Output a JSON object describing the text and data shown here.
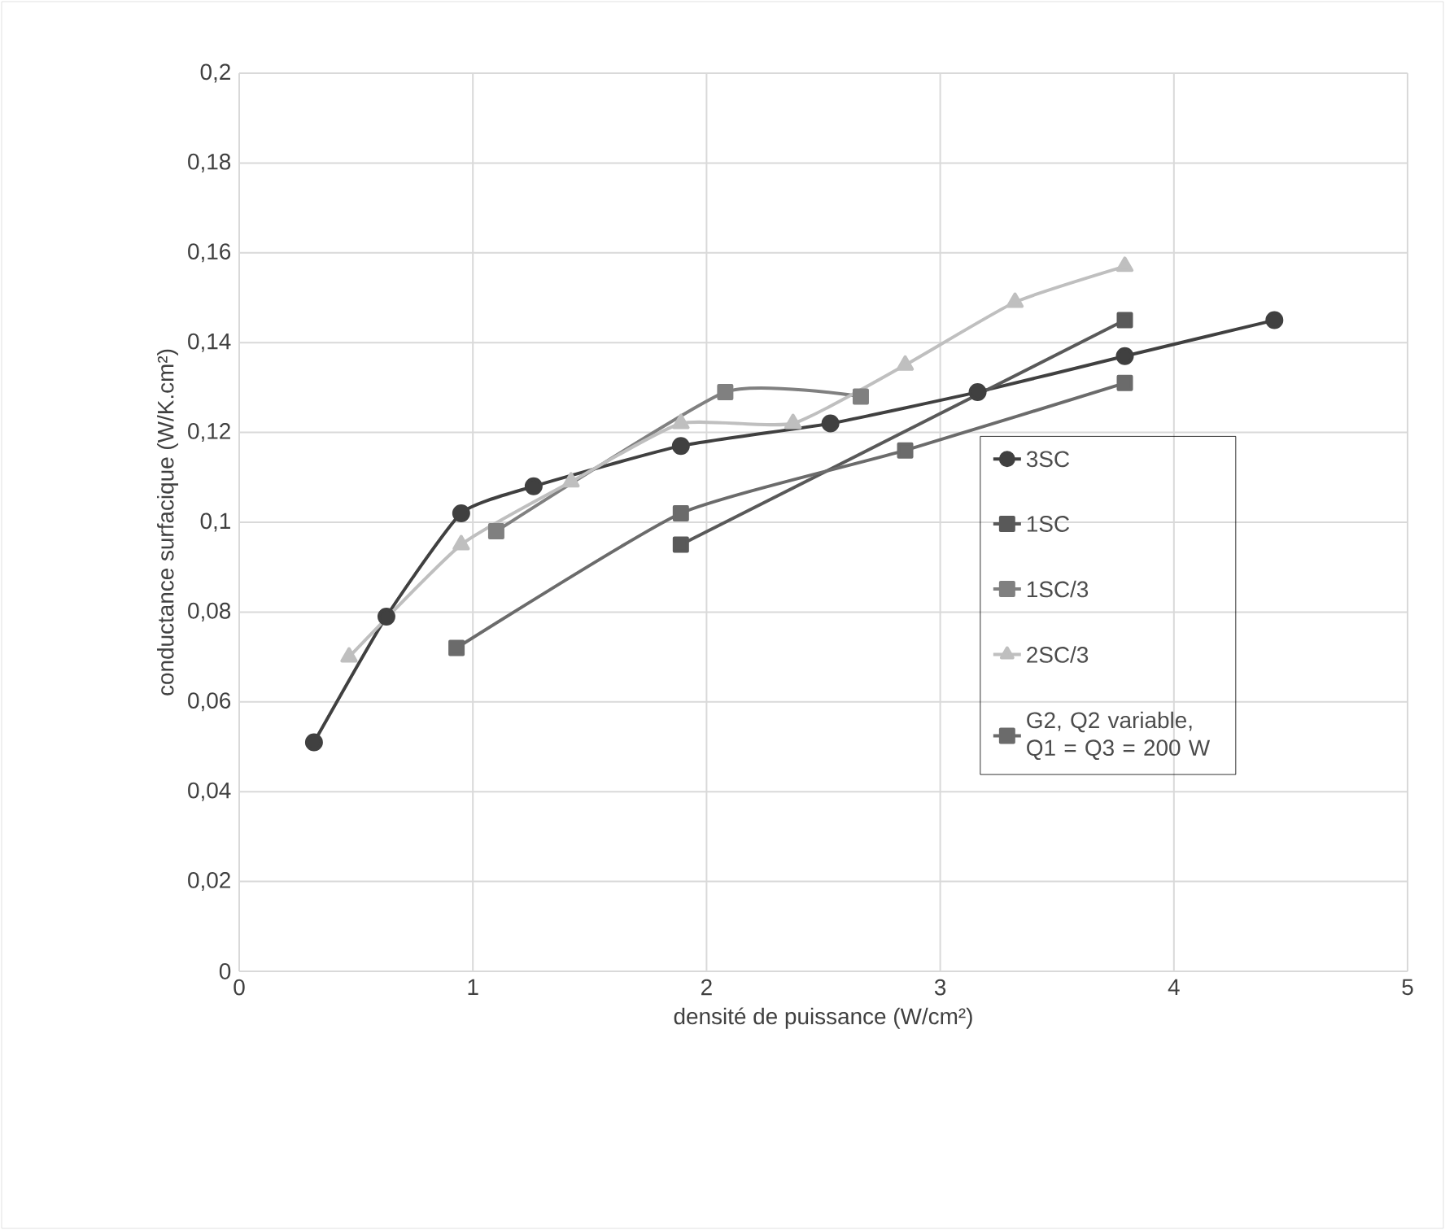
{
  "chart_data": {
    "type": "line",
    "xlabel": "densité de puissance (W/cm²)",
    "ylabel": "conductance surfacique (W/K.cm²)",
    "xlim": [
      0,
      5
    ],
    "xticks": [
      0,
      1,
      2,
      3,
      4,
      5
    ],
    "ylim": [
      0,
      0.2
    ],
    "yticks": [
      {
        "value": 0,
        "label": "0"
      },
      {
        "value": 0.02,
        "label": "0,02"
      },
      {
        "value": 0.04,
        "label": "0,04"
      },
      {
        "value": 0.06,
        "label": "0,06"
      },
      {
        "value": 0.08,
        "label": "0,08"
      },
      {
        "value": 0.1,
        "label": "0,1"
      },
      {
        "value": 0.12,
        "label": "0,12"
      },
      {
        "value": 0.14,
        "label": "0,14"
      },
      {
        "value": 0.16,
        "label": "0,16"
      },
      {
        "value": 0.18,
        "label": "0,18"
      },
      {
        "value": 0.2,
        "label": "0,2"
      }
    ],
    "grid": true,
    "legend": "bottom right",
    "series": [
      {
        "name": "3SC",
        "color": "#404040",
        "marker": "circle",
        "x": [
          0.32,
          0.63,
          0.95,
          1.26,
          1.89,
          2.53,
          3.16,
          3.79,
          4.43
        ],
        "values": [
          0.051,
          0.079,
          0.102,
          0.108,
          0.117,
          0.122,
          0.129,
          0.137,
          0.145
        ]
      },
      {
        "name": "1SC",
        "color": "#595959",
        "marker": "square",
        "x": [
          1.89,
          3.79
        ],
        "values": [
          0.095,
          0.145
        ]
      },
      {
        "name": "1SC/3",
        "color": "#808080",
        "marker": "square",
        "x": [
          1.1,
          2.08,
          2.66
        ],
        "values": [
          0.098,
          0.129,
          0.128
        ]
      },
      {
        "name": "2SC/3",
        "color": "#bfbfbf",
        "marker": "triangle",
        "x": [
          0.47,
          0.95,
          1.42,
          1.89,
          2.37,
          2.85,
          3.32,
          3.79
        ],
        "values": [
          0.07,
          0.095,
          0.109,
          0.122,
          0.122,
          0.135,
          0.149,
          0.157
        ]
      },
      {
        "name": "G2, Q2 variable, Q1 = Q3 = 200 W",
        "color": "#6b6b6b",
        "marker": "square",
        "x": [
          0.93,
          1.89,
          2.85,
          3.79
        ],
        "values": [
          0.072,
          0.102,
          0.116,
          0.131
        ]
      }
    ]
  }
}
